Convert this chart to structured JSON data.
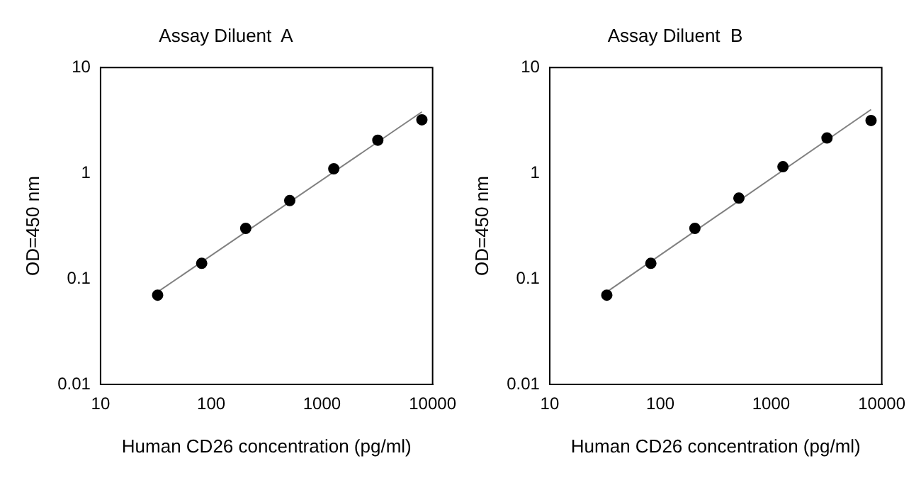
{
  "chart_data": [
    {
      "type": "scatter",
      "title": "Assay Diluent  A",
      "xlabel": "Human CD26 concentration (pg/ml)",
      "ylabel": "OD=450 nm",
      "log": "xy",
      "grid": false,
      "marker": "circle",
      "xlim": [
        10,
        10000
      ],
      "ylim": [
        0.01,
        10
      ],
      "xticks": [
        10,
        100,
        1000,
        10000
      ],
      "yticks": [
        0.01,
        0.1,
        1,
        10
      ],
      "series": [
        {
          "color": "#000000",
          "x": [
            32.8,
            82,
            205,
            512,
            1280,
            3200,
            8000
          ],
          "values": [
            0.07,
            0.14,
            0.3,
            0.55,
            1.1,
            2.05,
            3.2
          ]
        },
        {
          "type": "line",
          "marker": "none",
          "color": "#808080",
          "x": [
            32.8,
            8000
          ],
          "values": [
            0.075,
            3.8
          ]
        }
      ]
    },
    {
      "type": "scatter",
      "title": "Assay Diluent  B",
      "xlabel": "Human CD26 concentration (pg/ml)",
      "ylabel": "OD=450 nm",
      "log": "xy",
      "grid": false,
      "marker": "circle",
      "xlim": [
        10,
        10000
      ],
      "ylim": [
        0.01,
        10
      ],
      "xticks": [
        10,
        100,
        1000,
        10000
      ],
      "yticks": [
        0.01,
        0.1,
        1,
        10
      ],
      "series": [
        {
          "color": "#000000",
          "x": [
            32.8,
            82,
            205,
            512,
            1280,
            3200,
            8000
          ],
          "values": [
            0.07,
            0.14,
            0.3,
            0.58,
            1.15,
            2.15,
            3.15
          ]
        },
        {
          "type": "line",
          "marker": "none",
          "color": "#808080",
          "x": [
            32.8,
            8000
          ],
          "values": [
            0.075,
            4.0
          ]
        }
      ]
    }
  ]
}
